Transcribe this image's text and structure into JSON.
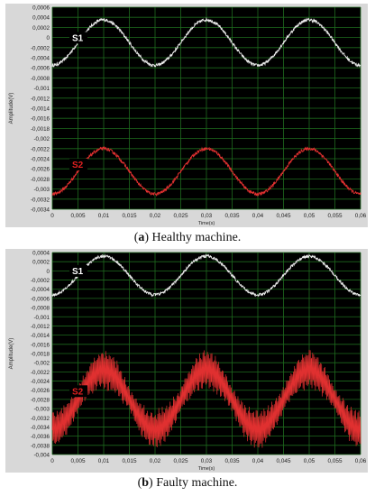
{
  "chart_data": [
    {
      "type": "line",
      "caption_letter": "a",
      "caption_text": "Healthy machine.",
      "xlabel": "Time(s)",
      "ylabel": "Amplitude(V)",
      "xlim": [
        0,
        0.06
      ],
      "ylim": [
        -0.0034,
        0.0006
      ],
      "xticks": [
        "0",
        "0,005",
        "0,01",
        "0,015",
        "0,02",
        "0,025",
        "0,03",
        "0,035",
        "0,04",
        "0,045",
        "0,05",
        "0,055",
        "0,06"
      ],
      "yticks": [
        "0,0006",
        "0,0004",
        "0,0002",
        "0",
        "-0,0002",
        "-0,0004",
        "-0,0006",
        "-0,0008",
        "-0,001",
        "-0,0012",
        "-0,0014",
        "-0,0016",
        "-0,0018",
        "-0,002",
        "-0,0022",
        "-0,0024",
        "-0,0026",
        "-0,0028",
        "-0,003",
        "-0,0032",
        "-0,0034"
      ],
      "grid": true,
      "series": [
        {
          "name": "S1",
          "color": "#e8e8e8",
          "offset": -0.0001,
          "amplitude": 0.00045,
          "phase_shift": 0.0,
          "noise": 3e-05,
          "ripple": 0.0
        },
        {
          "name": "S2",
          "color": "#e03030",
          "offset": -0.00265,
          "amplitude": 0.00045,
          "phase_shift": 0.0,
          "noise": 3e-05,
          "ripple": 0.0
        }
      ],
      "label_colors": {
        "S1": "#ffffff",
        "S2": "#e02020"
      }
    },
    {
      "type": "line",
      "caption_letter": "b",
      "caption_text": "Faulty machine.",
      "xlabel": "Time(s)",
      "ylabel": "Amplitude(V)",
      "xlim": [
        0,
        0.06
      ],
      "ylim": [
        -0.004,
        0.0004
      ],
      "xticks": [
        "0",
        "0,005",
        "0,01",
        "0,015",
        "0,02",
        "0,025",
        "0,03",
        "0,035",
        "0,04",
        "0,045",
        "0,05",
        "0,055",
        "0,06"
      ],
      "yticks": [
        "0,0004",
        "0,0002",
        "0",
        "-0,0002",
        "-0,0004",
        "-0,0006",
        "-0,0008",
        "-0,001",
        "-0,0012",
        "-0,0014",
        "-0,0016",
        "-0,0018",
        "-0,002",
        "-0,0022",
        "-0,0024",
        "-0,0026",
        "-0,0028",
        "-0,003",
        "-0,0032",
        "-0,0034",
        "-0,0036",
        "-0,0038",
        "-0,004"
      ],
      "grid": true,
      "series": [
        {
          "name": "S1",
          "color": "#e8e8e8",
          "offset": -0.0001,
          "amplitude": 0.00042,
          "phase_shift": 0.0,
          "noise": 3e-05,
          "ripple": 0.0
        },
        {
          "name": "S2",
          "color": "#e03030",
          "offset": -0.0028,
          "amplitude": 0.00065,
          "phase_shift": 0.0,
          "noise": 2e-05,
          "ripple": 0.00045
        }
      ],
      "label_colors": {
        "S1": "#ffffff",
        "S2": "#e02020"
      }
    }
  ]
}
